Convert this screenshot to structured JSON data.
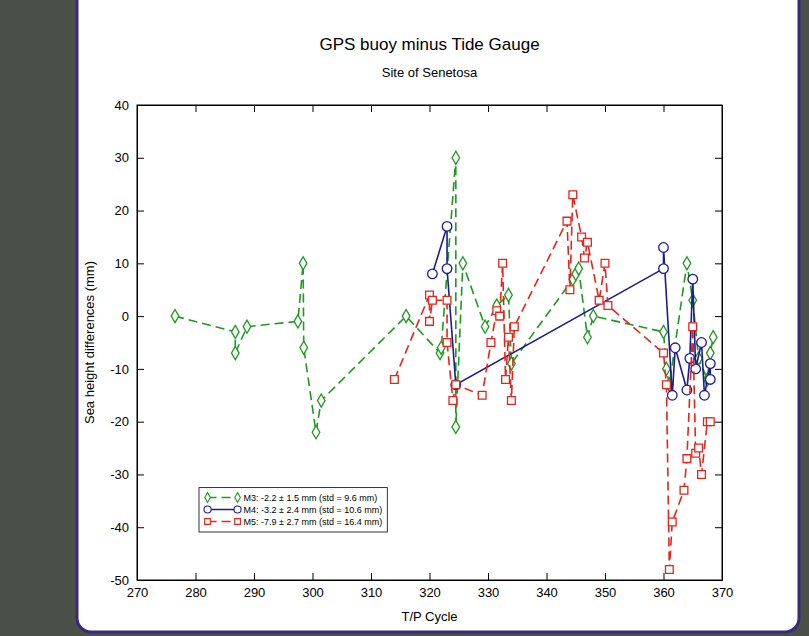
{
  "chart_data": {
    "type": "line",
    "title": "GPS buoy minus Tide Gauge",
    "subtitle": "Site of Senetosa",
    "x_label": "T/P Cycle",
    "y_label": "Sea height differences (mm)",
    "xlim": [
      270,
      370
    ],
    "xticks": [
      270,
      280,
      290,
      300,
      310,
      320,
      330,
      340,
      350,
      360,
      370
    ],
    "ylim": [
      -50,
      40
    ],
    "yticks": [
      -50,
      -40,
      -30,
      -20,
      -10,
      0,
      10,
      20,
      30,
      40
    ],
    "legend": "lower left",
    "series": [
      {
        "name": "M3: -2.2 ± 1.5 mm (std = 9.6 mm)",
        "color": "#1e9a1e",
        "marker": "diamond",
        "line_style": "dashed",
        "x": [
          276.5,
          286.8,
          286.8,
          288.8,
          297.5,
          298.4,
          298.5,
          300.6,
          301.5,
          316,
          321.8,
          322,
          324.5,
          324.5,
          325.7,
          329.5,
          331.5,
          333.5,
          334,
          344.5,
          345,
          345.5,
          347,
          348,
          360,
          360.5,
          361,
          364,
          365,
          366,
          367.5,
          368,
          368.5
        ],
        "values": [
          0,
          -3,
          -7,
          -2,
          -1,
          10,
          -6,
          -22,
          -16,
          0,
          -7,
          -6,
          30,
          -21,
          10,
          -2,
          2,
          4,
          -9,
          7,
          8,
          9,
          -4,
          0,
          -3,
          -10,
          -13,
          10,
          3,
          -8,
          -12,
          -7,
          -4
        ]
      },
      {
        "name": "M4: -3.2 ± 2.4 mm (std = 10.6 mm)",
        "color": "#1c1c8f",
        "marker": "circle",
        "line_style": "solid",
        "x": [
          320.5,
          323,
          323,
          324.5,
          360,
          360,
          361.5,
          362,
          364,
          364.5,
          365,
          365.5,
          366.5,
          367,
          368,
          368
        ],
        "values": [
          8,
          17,
          9,
          -13,
          9,
          13,
          -15,
          -6,
          -14,
          -8,
          7,
          -10,
          -5,
          -15,
          -9,
          -12
        ]
      },
      {
        "name": "M5: -7.9 ± 2.7 mm (std = 16.4 mm)",
        "color": "#e8231a",
        "marker": "square",
        "line_style": "dashed",
        "x": [
          314,
          320,
          320,
          320.5,
          323,
          323,
          324,
          324.5,
          329,
          330.5,
          331.5,
          332,
          332.5,
          333,
          333.5,
          334,
          334.5,
          343.5,
          344,
          344.5,
          346,
          346.5,
          347,
          349,
          350,
          350.5,
          360,
          360.5,
          361,
          361.5,
          363.5,
          364,
          365,
          365.5,
          366,
          366.5,
          367.5,
          368
        ],
        "values": [
          -12,
          4,
          -1,
          3,
          3,
          -5,
          -16,
          -13,
          -15,
          -5,
          1,
          0,
          10,
          -12,
          -4,
          -16,
          -2,
          18,
          5,
          23,
          15,
          11,
          14,
          3,
          10,
          2,
          -7,
          -13,
          -48,
          -39,
          -33,
          -27,
          -2,
          -26,
          -25,
          -30,
          -20,
          -20
        ]
      }
    ]
  }
}
